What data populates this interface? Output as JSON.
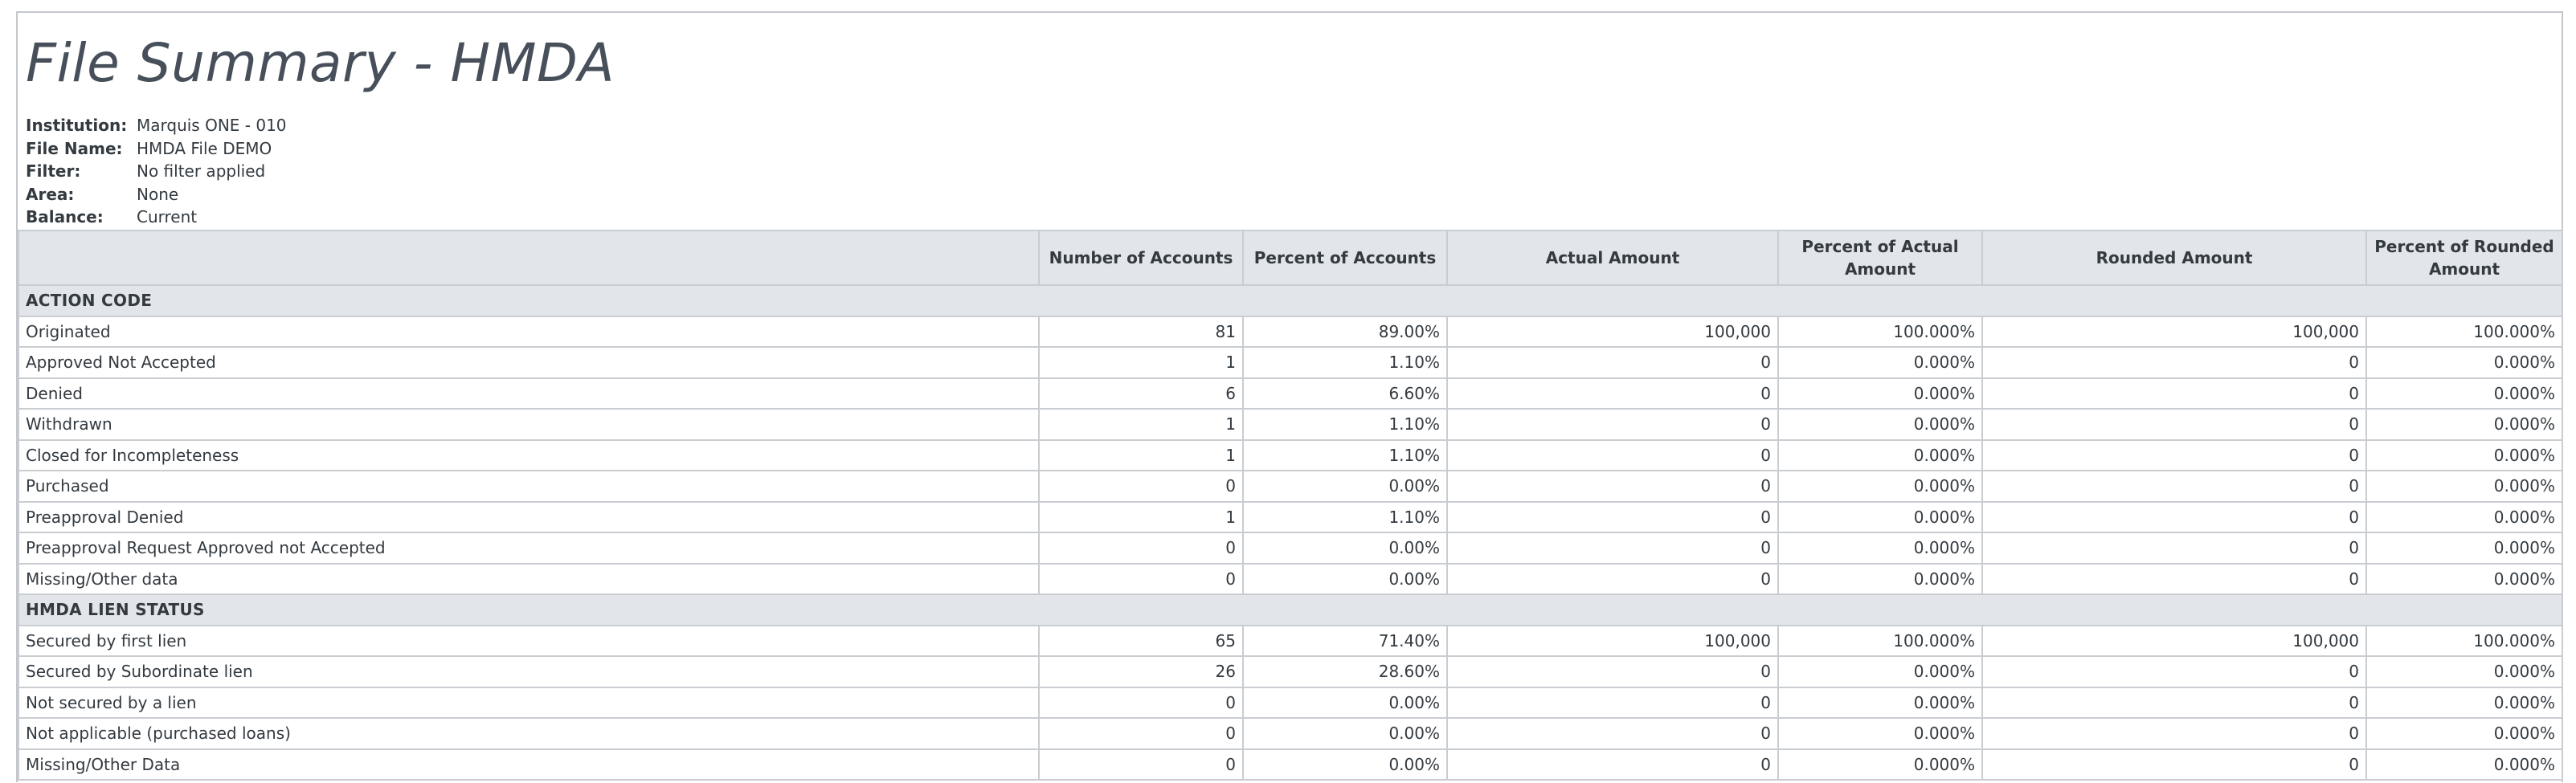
{
  "report": {
    "title": "File Summary - HMDA",
    "meta": [
      {
        "label": "Institution:",
        "value": "Marquis ONE - 010"
      },
      {
        "label": "File Name:",
        "value": "HMDA File DEMO"
      },
      {
        "label": "Filter:",
        "value": "No filter applied"
      },
      {
        "label": "Area:",
        "value": "None"
      },
      {
        "label": "Balance:",
        "value": "Current"
      }
    ]
  },
  "table": {
    "columns": [
      "",
      "Number of Accounts",
      "Percent of Accounts",
      "Actual Amount",
      "Percent of Actual Amount",
      "Rounded Amount",
      "Percent of Rounded Amount"
    ],
    "sections": [
      {
        "title": "ACTION CODE",
        "rows": [
          {
            "label": "Originated",
            "count": "81",
            "pct_accounts": "89.00%",
            "actual": "100,000",
            "pct_actual": "100.000%",
            "rounded": "100,000",
            "pct_rounded": "100.000%"
          },
          {
            "label": "Approved Not Accepted",
            "count": "1",
            "pct_accounts": "1.10%",
            "actual": "0",
            "pct_actual": "0.000%",
            "rounded": "0",
            "pct_rounded": "0.000%"
          },
          {
            "label": "Denied",
            "count": "6",
            "pct_accounts": "6.60%",
            "actual": "0",
            "pct_actual": "0.000%",
            "rounded": "0",
            "pct_rounded": "0.000%"
          },
          {
            "label": "Withdrawn",
            "count": "1",
            "pct_accounts": "1.10%",
            "actual": "0",
            "pct_actual": "0.000%",
            "rounded": "0",
            "pct_rounded": "0.000%"
          },
          {
            "label": "Closed for Incompleteness",
            "count": "1",
            "pct_accounts": "1.10%",
            "actual": "0",
            "pct_actual": "0.000%",
            "rounded": "0",
            "pct_rounded": "0.000%"
          },
          {
            "label": "Purchased",
            "count": "0",
            "pct_accounts": "0.00%",
            "actual": "0",
            "pct_actual": "0.000%",
            "rounded": "0",
            "pct_rounded": "0.000%"
          },
          {
            "label": "Preapproval Denied",
            "count": "1",
            "pct_accounts": "1.10%",
            "actual": "0",
            "pct_actual": "0.000%",
            "rounded": "0",
            "pct_rounded": "0.000%"
          },
          {
            "label": "Preapproval Request Approved not Accepted",
            "count": "0",
            "pct_accounts": "0.00%",
            "actual": "0",
            "pct_actual": "0.000%",
            "rounded": "0",
            "pct_rounded": "0.000%"
          },
          {
            "label": "Missing/Other data",
            "count": "0",
            "pct_accounts": "0.00%",
            "actual": "0",
            "pct_actual": "0.000%",
            "rounded": "0",
            "pct_rounded": "0.000%"
          }
        ]
      },
      {
        "title": "HMDA LIEN STATUS",
        "rows": [
          {
            "label": "Secured by first lien",
            "count": "65",
            "pct_accounts": "71.40%",
            "actual": "100,000",
            "pct_actual": "100.000%",
            "rounded": "100,000",
            "pct_rounded": "100.000%"
          },
          {
            "label": "Secured by Subordinate lien",
            "count": "26",
            "pct_accounts": "28.60%",
            "actual": "0",
            "pct_actual": "0.000%",
            "rounded": "0",
            "pct_rounded": "0.000%"
          },
          {
            "label": "Not secured by a lien",
            "count": "0",
            "pct_accounts": "0.00%",
            "actual": "0",
            "pct_actual": "0.000%",
            "rounded": "0",
            "pct_rounded": "0.000%"
          },
          {
            "label": "Not applicable (purchased loans)",
            "count": "0",
            "pct_accounts": "0.00%",
            "actual": "0",
            "pct_actual": "0.000%",
            "rounded": "0",
            "pct_rounded": "0.000%"
          },
          {
            "label": "Missing/Other Data",
            "count": "0",
            "pct_accounts": "0.00%",
            "actual": "0",
            "pct_actual": "0.000%",
            "rounded": "0",
            "pct_rounded": "0.000%"
          }
        ]
      }
    ]
  }
}
